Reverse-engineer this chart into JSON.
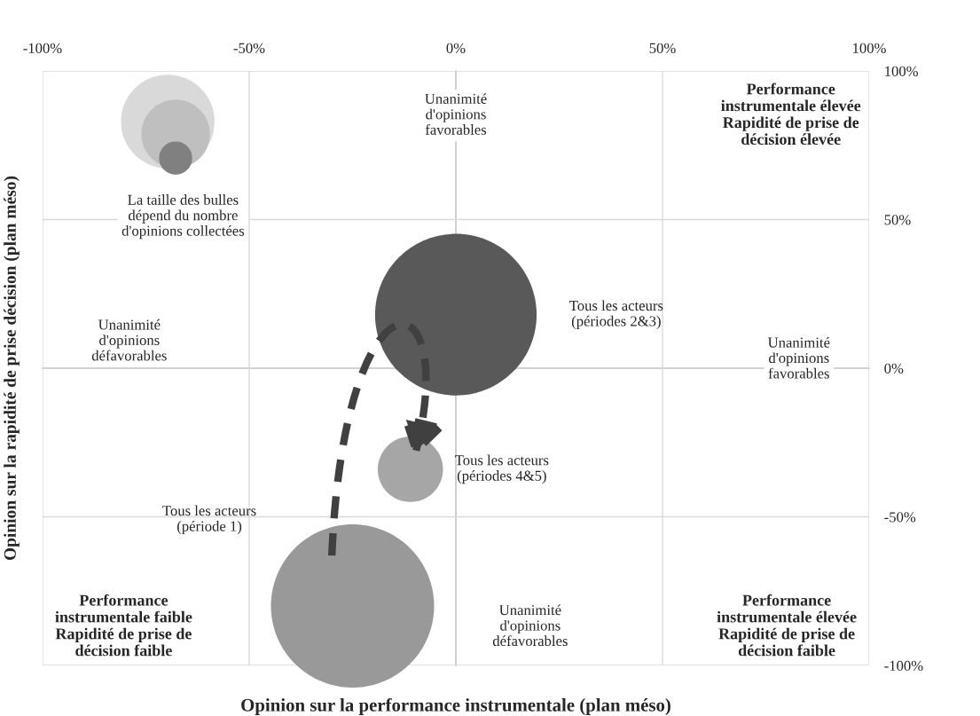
{
  "chart_data": {
    "type": "bubble",
    "xlabel": "Opinion sur la performance instrumentale (plan méso)",
    "ylabel": "Opinion sur la rapidité de prise décision (plan méso)",
    "series": [
      {
        "name": "Tous les acteurs\n(périodes 2&3)",
        "color": "#595959",
        "x": [
          0
        ],
        "values": [
          18
        ],
        "sizes": [
          0.98
        ]
      },
      {
        "name": "Tous les acteurs\n(période 1)",
        "color": "#999999",
        "x": [
          -25
        ],
        "values": [
          -80
        ],
        "sizes": [
          1
        ]
      },
      {
        "name": "Tous les acteurs\n(périodes 4&5)",
        "color": "#a6a6a6",
        "x": [
          -11
        ],
        "values": [
          -34
        ],
        "sizes": [
          0.16
        ]
      }
    ],
    "xlim": [
      -100,
      100
    ],
    "xticks": [
      {
        "value": -100,
        "label": "-100%"
      },
      {
        "value": -50,
        "label": "-50%"
      },
      {
        "value": 0,
        "label": "0%"
      },
      {
        "value": 50,
        "label": "50%"
      },
      {
        "value": 100,
        "label": "100%"
      }
    ],
    "ylim": [
      -100,
      100
    ],
    "yticks": [
      {
        "value": -100,
        "label": "-100%"
      },
      {
        "value": -50,
        "label": "-50%"
      },
      {
        "value": 0,
        "label": "0%"
      },
      {
        "value": 50,
        "label": "50%"
      },
      {
        "value": 100,
        "label": "100%"
      }
    ],
    "grid": true,
    "annotations": [
      "Unanimité\nd'opinions\nfavorables",
      "Unanimité\nd'opinions\nfavorables",
      "Unanimité\nd'opinions\ndéfavorables",
      "Unanimité\nd'opinions\ndéfavorables",
      "Performance\ninstrumentale élevée\nRapidité de prise de\ndécision élevée",
      "Performance\ninstrumentale faible\nRapidité de prise de\ndécision faible",
      "Performance\ninstrumentale élevée\nRapidité de prise de\ndécision faible",
      "La taille des bulles\ndépend du nombre\nd'opinions collectées"
    ]
  }
}
